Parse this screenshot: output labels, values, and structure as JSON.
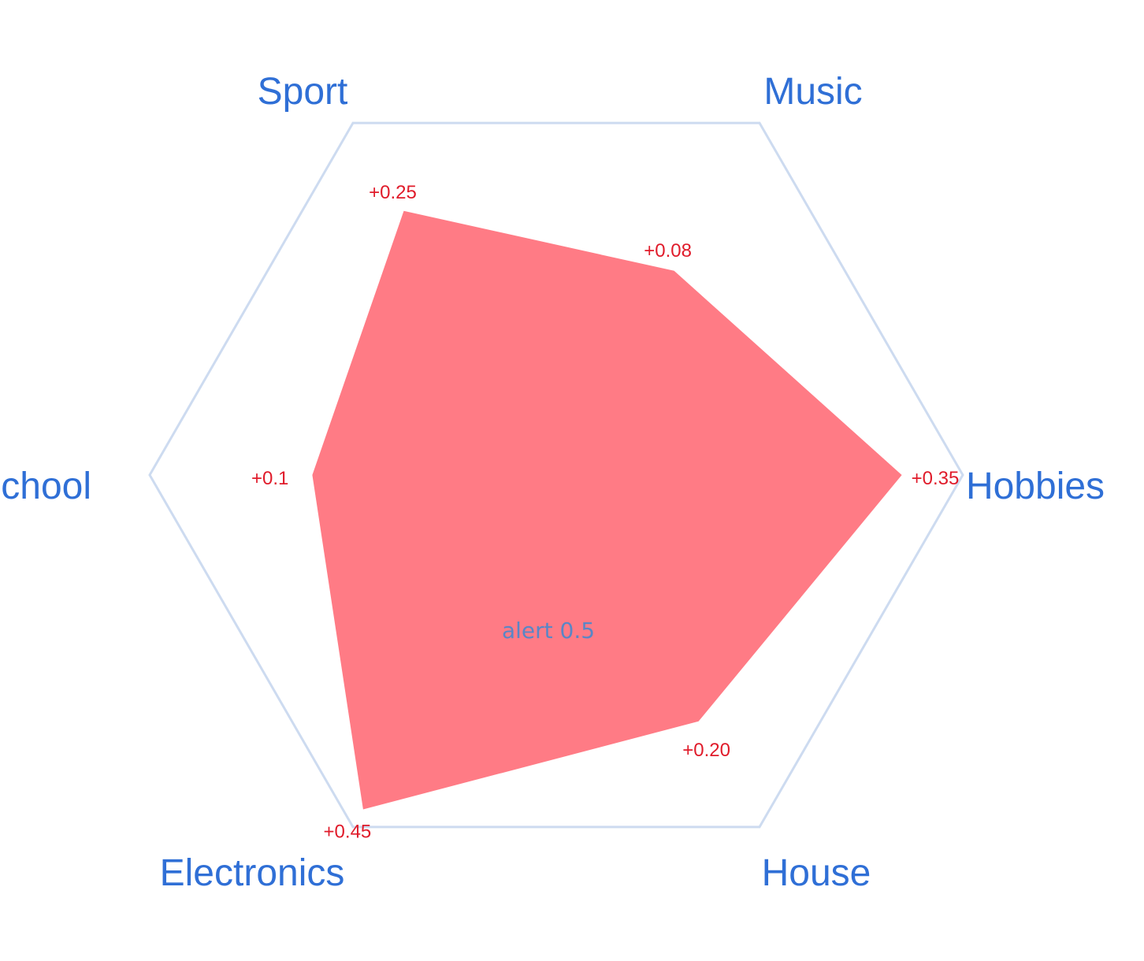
{
  "chart_data": {
    "type": "radar",
    "categories": [
      "Hobbies",
      "Music",
      "Sport",
      "School",
      "Electronics",
      "House"
    ],
    "rmax": 1.0,
    "threshold": {
      "value": 0.5,
      "label": "alert 0.5",
      "color": "#3f6fb5",
      "fill": "#fde8ef"
    },
    "series": [
      {
        "values": [
          0.85,
          0.58,
          0.75,
          0.6,
          0.95,
          0.7
        ],
        "color": "#ff7b85"
      }
    ],
    "data_labels": [
      "+0.35",
      "+0.08",
      "+0.25",
      "+0.1",
      "+0.45",
      "+0.20"
    ],
    "grid_color": "#cddbf0",
    "spoke_color": "#dde2ef",
    "category_color": "#2f6fd6",
    "data_label_color": "#e01b2a"
  }
}
